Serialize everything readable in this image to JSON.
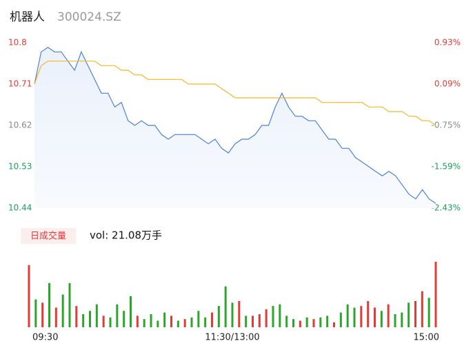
{
  "chart_data": [
    {
      "type": "line",
      "title": "机器人",
      "subtitle": "300024.SZ",
      "x": [
        0,
        4,
        8,
        12,
        16,
        20,
        24,
        28,
        32,
        36,
        40,
        44,
        48,
        52,
        56,
        60,
        64,
        68,
        72,
        76,
        80,
        84,
        88,
        92,
        96,
        100,
        104,
        108,
        112,
        116,
        120,
        124,
        128,
        132,
        136,
        140,
        144,
        148,
        152,
        156,
        160,
        164,
        168,
        172,
        176,
        180,
        184,
        188,
        192,
        196,
        200,
        204,
        208,
        212,
        216,
        220,
        224,
        228,
        232,
        236,
        240
      ],
      "xlim": [
        0,
        240
      ],
      "ylim": [
        10.44,
        10.8
      ],
      "yticks": [
        10.44,
        10.53,
        10.62,
        10.71,
        10.8
      ],
      "y2lim": [
        -2.43,
        0.93
      ],
      "y2ticks": [
        {
          "value": -2.43,
          "label": "-2.43%"
        },
        {
          "value": -1.59,
          "label": "-1.59%"
        },
        {
          "value": -0.75,
          "label": "-0.75%"
        },
        {
          "value": 0.09,
          "label": "0.09%"
        },
        {
          "value": 0.93,
          "label": "0.93%"
        }
      ],
      "tick_colors": [
        "#1a9f5a",
        "#1a9f5a",
        "#888888",
        "#e53935",
        "#e53935"
      ],
      "series": [
        {
          "color": "#4a7fe0",
          "values": [
            10.71,
            10.78,
            10.79,
            10.78,
            10.78,
            10.76,
            10.74,
            10.78,
            10.75,
            10.72,
            10.69,
            10.69,
            10.66,
            10.67,
            10.63,
            10.62,
            10.63,
            10.62,
            10.62,
            10.6,
            10.59,
            10.6,
            10.6,
            10.6,
            10.6,
            10.59,
            10.58,
            10.59,
            10.57,
            10.56,
            10.58,
            10.59,
            10.59,
            10.6,
            10.62,
            10.62,
            10.66,
            10.69,
            10.66,
            10.64,
            10.64,
            10.63,
            10.63,
            10.61,
            10.59,
            10.59,
            10.57,
            10.57,
            10.55,
            10.54,
            10.53,
            10.52,
            10.51,
            10.52,
            10.51,
            10.49,
            10.47,
            10.46,
            10.48,
            10.46,
            10.45
          ]
        },
        {
          "color": "#f5b623",
          "values": [
            10.71,
            10.75,
            10.76,
            10.76,
            10.76,
            10.76,
            10.76,
            10.76,
            10.76,
            10.76,
            10.75,
            10.75,
            10.75,
            10.74,
            10.74,
            10.73,
            10.73,
            10.72,
            10.72,
            10.72,
            10.72,
            10.72,
            10.72,
            10.71,
            10.71,
            10.71,
            10.71,
            10.71,
            10.7,
            10.69,
            10.68,
            10.68,
            10.68,
            10.68,
            10.68,
            10.68,
            10.68,
            10.68,
            10.68,
            10.68,
            10.68,
            10.68,
            10.68,
            10.67,
            10.67,
            10.67,
            10.67,
            10.67,
            10.67,
            10.67,
            10.66,
            10.66,
            10.66,
            10.65,
            10.65,
            10.65,
            10.64,
            10.64,
            10.63,
            10.63,
            10.62
          ]
        }
      ]
    },
    {
      "type": "bar",
      "title": "日成交量",
      "subtitle": "vol: 21.08万手",
      "x": [
        0,
        4,
        8,
        12,
        16,
        20,
        24,
        28,
        32,
        36,
        40,
        44,
        48,
        52,
        56,
        60,
        64,
        68,
        72,
        76,
        80,
        84,
        88,
        92,
        96,
        100,
        104,
        108,
        112,
        116,
        120,
        124,
        128,
        132,
        136,
        140,
        144,
        148,
        152,
        156,
        160,
        164,
        168,
        172,
        176,
        180,
        184,
        188,
        192,
        196,
        200,
        204,
        208,
        212,
        216,
        220,
        224,
        228,
        232,
        236,
        240
      ],
      "xlim": [
        0,
        240
      ],
      "xticks": [
        {
          "value": 0,
          "label": "09:30"
        },
        {
          "value": 120,
          "label": "11:30/13:00"
        },
        {
          "value": 240,
          "label": "15:00"
        }
      ],
      "ylim": [
        0,
        4000
      ],
      "values": [
        3800,
        1700,
        1500,
        2700,
        1200,
        2000,
        2700,
        1300,
        800,
        1000,
        1400,
        700,
        600,
        1400,
        1000,
        1900,
        700,
        500,
        800,
        400,
        900,
        700,
        400,
        500,
        600,
        1000,
        600,
        900,
        1300,
        2500,
        1500,
        1600,
        700,
        700,
        800,
        1100,
        1300,
        1400,
        700,
        500,
        400,
        600,
        500,
        600,
        700,
        300,
        900,
        1400,
        1200,
        1300,
        1600,
        1200,
        1000,
        1400,
        800,
        900,
        1500,
        1600,
        2200,
        1800,
        4000
      ],
      "colors": [
        "#e53935",
        "#2ba52b",
        "#e53935",
        "#2ba52b",
        "#e53935",
        "#2ba52b",
        "#2ba52b",
        "#e53935",
        "#2ba52b",
        "#2ba52b",
        "#2ba52b",
        "#e53935",
        "#2ba52b",
        "#2ba52b",
        "#2ba52b",
        "#2ba52b",
        "#e53935",
        "#2ba52b",
        "#2ba52b",
        "#2ba52b",
        "#2ba52b",
        "#e53935",
        "#2ba52b",
        "#e53935",
        "#2ba52b",
        "#2ba52b",
        "#2ba52b",
        "#e53935",
        "#2ba52b",
        "#2ba52b",
        "#2ba52b",
        "#e53935",
        "#2ba52b",
        "#e53935",
        "#e53935",
        "#e53935",
        "#2ba52b",
        "#2ba52b",
        "#2ba52b",
        "#2ba52b",
        "#e53935",
        "#2ba52b",
        "#e53935",
        "#2ba52b",
        "#2ba52b",
        "#e53935",
        "#2ba52b",
        "#2ba52b",
        "#2ba52b",
        "#e53935",
        "#e53935",
        "#e53935",
        "#2ba52b",
        "#e53935",
        "#2ba52b",
        "#2ba52b",
        "#2ba52b",
        "#e53935",
        "#e53935",
        "#2ba52b",
        "#e53935"
      ]
    }
  ]
}
